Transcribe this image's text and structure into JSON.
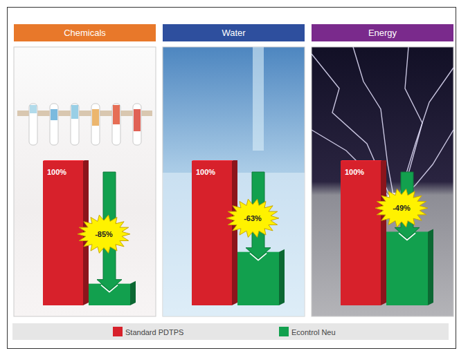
{
  "chart_data": {
    "type": "bar",
    "categories": [
      "Chemicals",
      "Water",
      "Energy"
    ],
    "series": [
      {
        "name": "Standard PDTPS",
        "color": "#d7212b",
        "values": [
          100,
          100,
          100
        ],
        "value_labels": [
          "100%",
          "100%",
          "100%"
        ]
      },
      {
        "name": "Econtrol Neu",
        "color": "#12a04e",
        "values": [
          15,
          37,
          51
        ]
      }
    ],
    "annotations": [
      "-85%",
      "-63%",
      "-49%"
    ],
    "ylim": [
      0,
      100
    ],
    "tick_labels": false,
    "grid": false,
    "legend": "bottom"
  }
}
